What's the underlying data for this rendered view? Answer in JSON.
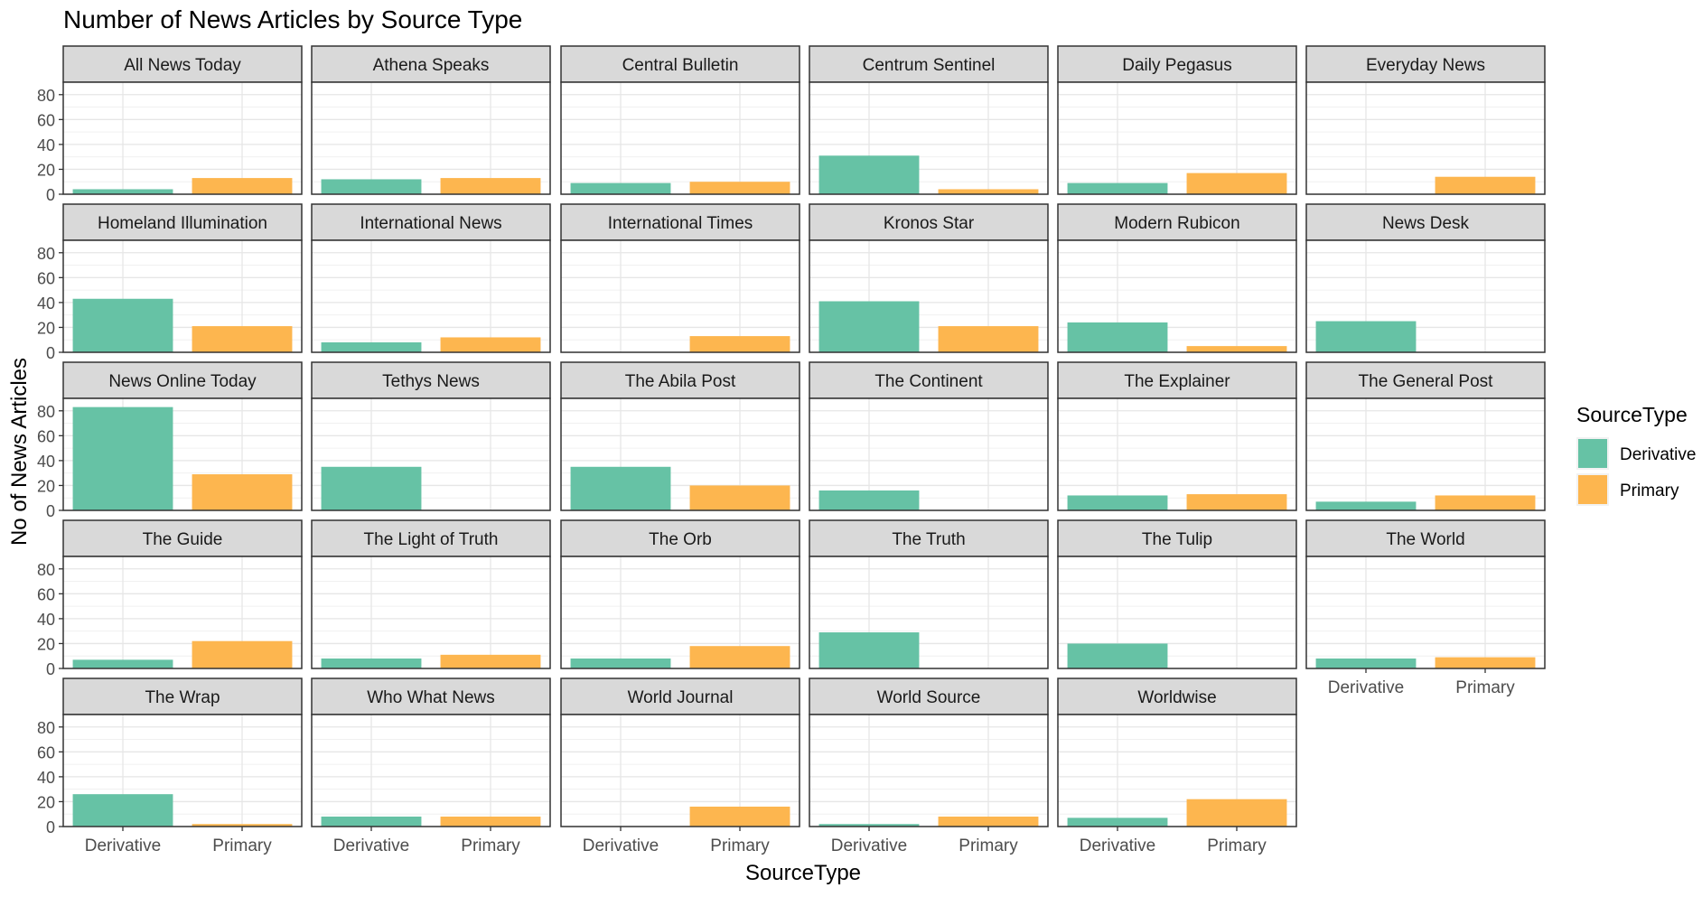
{
  "chart_data": {
    "type": "bar",
    "title": "Number of News Articles by Source Type",
    "xlabel": "SourceType",
    "ylabel": "No of News Articles",
    "ylim": [
      0,
      90
    ],
    "y_ticks": [
      0,
      20,
      40,
      60,
      80
    ],
    "categories": [
      "Derivative",
      "Primary"
    ],
    "grid": true,
    "legend": {
      "title": "SourceType",
      "position": "right",
      "entries": [
        {
          "label": "Derivative",
          "color": "#66c2a5"
        },
        {
          "label": "Primary",
          "color": "#fdb64f"
        }
      ]
    },
    "facets": [
      {
        "name": "All News Today",
        "values": [
          4,
          13
        ]
      },
      {
        "name": "Athena Speaks",
        "values": [
          12,
          13
        ]
      },
      {
        "name": "Central Bulletin",
        "values": [
          9,
          10
        ]
      },
      {
        "name": "Centrum Sentinel",
        "values": [
          31,
          4
        ]
      },
      {
        "name": "Daily Pegasus",
        "values": [
          9,
          17
        ]
      },
      {
        "name": "Everyday News",
        "values": [
          0,
          14
        ]
      },
      {
        "name": "Homeland Illumination",
        "values": [
          43,
          21
        ]
      },
      {
        "name": "International News",
        "values": [
          8,
          12
        ]
      },
      {
        "name": "International Times",
        "values": [
          0,
          13
        ]
      },
      {
        "name": "Kronos Star",
        "values": [
          41,
          21
        ]
      },
      {
        "name": "Modern Rubicon",
        "values": [
          24,
          5
        ]
      },
      {
        "name": "News Desk",
        "values": [
          25,
          0
        ]
      },
      {
        "name": "News Online Today",
        "values": [
          83,
          29
        ]
      },
      {
        "name": "Tethys News",
        "values": [
          35,
          0
        ]
      },
      {
        "name": "The Abila Post",
        "values": [
          35,
          20
        ]
      },
      {
        "name": "The Continent",
        "values": [
          16,
          0
        ]
      },
      {
        "name": "The Explainer",
        "values": [
          12,
          13
        ]
      },
      {
        "name": "The General Post",
        "values": [
          7,
          12
        ]
      },
      {
        "name": "The Guide",
        "values": [
          7,
          22
        ]
      },
      {
        "name": "The Light of Truth",
        "values": [
          8,
          11
        ]
      },
      {
        "name": "The Orb",
        "values": [
          8,
          18
        ]
      },
      {
        "name": "The Truth",
        "values": [
          29,
          0
        ]
      },
      {
        "name": "The Tulip",
        "values": [
          20,
          0
        ]
      },
      {
        "name": "The World",
        "values": [
          8,
          9
        ]
      },
      {
        "name": "The Wrap",
        "values": [
          26,
          2
        ]
      },
      {
        "name": "Who What News",
        "values": [
          8,
          8
        ]
      },
      {
        "name": "World Journal",
        "values": [
          0,
          16
        ]
      },
      {
        "name": "World Source",
        "values": [
          2,
          8
        ]
      },
      {
        "name": "Worldwise",
        "values": [
          7,
          22
        ]
      }
    ]
  }
}
